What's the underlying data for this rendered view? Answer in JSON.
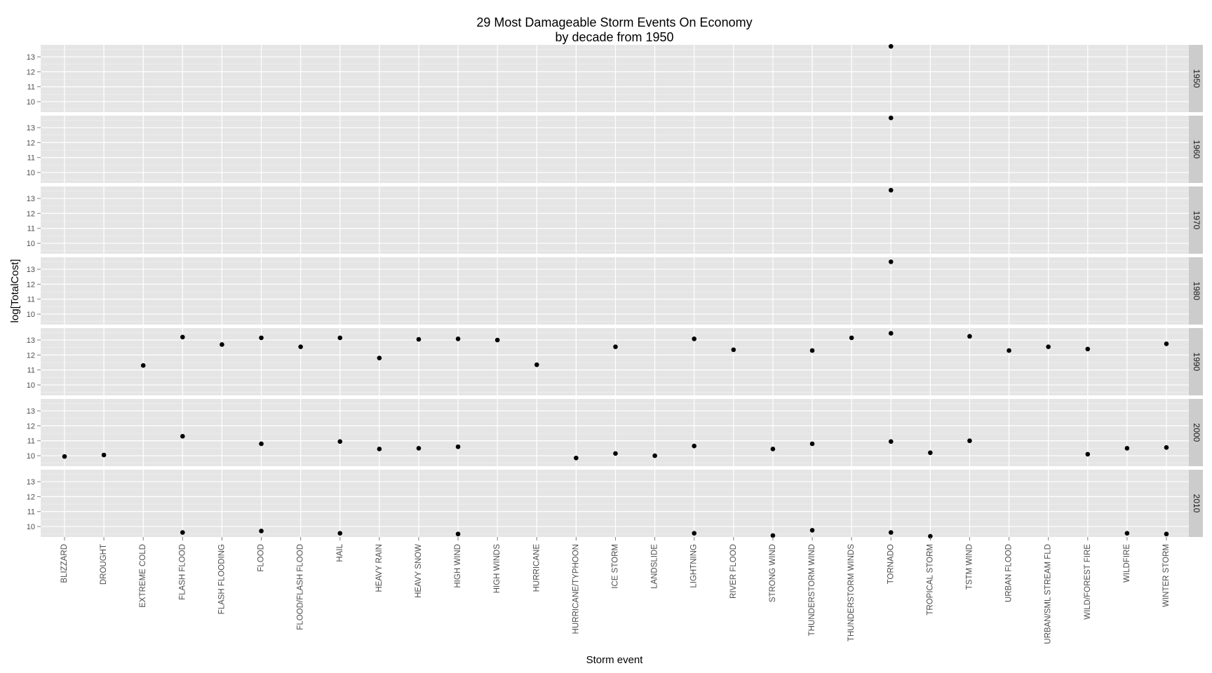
{
  "chart_data": {
    "type": "scatter",
    "title": "29 Most Damageable Storm Events On Economy",
    "subtitle": "by decade from 1950",
    "xlabel": "Storm event",
    "ylabel": "log[TotalCost]",
    "ylim": [
      9.3,
      13.8
    ],
    "yticks": [
      10,
      11,
      12,
      13
    ],
    "grid": true,
    "legend": "none",
    "colors": {
      "panel_bg": "#e5e5e5",
      "grid_major": "#ffffff",
      "grid_minor": "#f2f2f2",
      "strip_bg": "#cccccc",
      "point": "#000000"
    },
    "categories": [
      "BLIZZARD",
      "DROUGHT",
      "EXTREME COLD",
      "FLASH FLOOD",
      "FLASH FLOODING",
      "FLOOD",
      "FLOOD/FLASH FLOOD",
      "HAIL",
      "HEAVY RAIN",
      "HEAVY SNOW",
      "HIGH WIND",
      "HIGH WINDS",
      "HURRICANE",
      "HURRICANE/TYPHOON",
      "ICE STORM",
      "LANDSLIDE",
      "LIGHTNING",
      "RIVER FLOOD",
      "STRONG WIND",
      "THUNDERSTORM WIND",
      "THUNDERSTORM WINDS",
      "TORNADO",
      "TROPICAL STORM",
      "TSTM WIND",
      "URBAN FLOOD",
      "URBAN/SML STREAM FLD",
      "WILD/FOREST FIRE",
      "WILDFIRE",
      "WINTER STORM"
    ],
    "facets": [
      {
        "decade": "1950",
        "points": [
          {
            "x": "TORNADO",
            "y": 13.7
          }
        ]
      },
      {
        "decade": "1960",
        "points": [
          {
            "x": "TORNADO",
            "y": 13.65
          }
        ]
      },
      {
        "decade": "1970",
        "points": [
          {
            "x": "TORNADO",
            "y": 13.55
          }
        ]
      },
      {
        "decade": "1980",
        "points": [
          {
            "x": "TORNADO",
            "y": 13.5
          }
        ]
      },
      {
        "decade": "1990",
        "points": [
          {
            "x": "EXTREME COLD",
            "y": 11.3
          },
          {
            "x": "FLASH FLOOD",
            "y": 13.2
          },
          {
            "x": "FLASH FLOODING",
            "y": 12.7
          },
          {
            "x": "FLOOD",
            "y": 13.15
          },
          {
            "x": "FLOOD/FLASH FLOOD",
            "y": 12.55
          },
          {
            "x": "HAIL",
            "y": 13.15
          },
          {
            "x": "HEAVY RAIN",
            "y": 11.8
          },
          {
            "x": "HEAVY SNOW",
            "y": 13.05
          },
          {
            "x": "HIGH WIND",
            "y": 13.08
          },
          {
            "x": "HIGH WINDS",
            "y": 13.0
          },
          {
            "x": "HURRICANE",
            "y": 11.35
          },
          {
            "x": "ICE STORM",
            "y": 12.55
          },
          {
            "x": "LIGHTNING",
            "y": 13.08
          },
          {
            "x": "RIVER FLOOD",
            "y": 12.35
          },
          {
            "x": "THUNDERSTORM WIND",
            "y": 12.3
          },
          {
            "x": "THUNDERSTORM WINDS",
            "y": 13.15
          },
          {
            "x": "TORNADO",
            "y": 13.45
          },
          {
            "x": "TSTM WIND",
            "y": 13.25
          },
          {
            "x": "URBAN FLOOD",
            "y": 12.3
          },
          {
            "x": "URBAN/SML STREAM FLD",
            "y": 12.55
          },
          {
            "x": "WILD/FOREST FIRE",
            "y": 12.4
          },
          {
            "x": "WINTER STORM",
            "y": 12.75
          }
        ]
      },
      {
        "decade": "2000",
        "points": [
          {
            "x": "BLIZZARD",
            "y": 9.95
          },
          {
            "x": "DROUGHT",
            "y": 10.05
          },
          {
            "x": "FLASH FLOOD",
            "y": 11.3
          },
          {
            "x": "FLOOD",
            "y": 10.8
          },
          {
            "x": "HAIL",
            "y": 10.95
          },
          {
            "x": "HEAVY RAIN",
            "y": 10.45
          },
          {
            "x": "HEAVY SNOW",
            "y": 10.5
          },
          {
            "x": "HIGH WIND",
            "y": 10.6
          },
          {
            "x": "HURRICANE/TYPHOON",
            "y": 9.85
          },
          {
            "x": "ICE STORM",
            "y": 10.15
          },
          {
            "x": "LANDSLIDE",
            "y": 10.0
          },
          {
            "x": "LIGHTNING",
            "y": 10.65
          },
          {
            "x": "STRONG WIND",
            "y": 10.45
          },
          {
            "x": "THUNDERSTORM WIND",
            "y": 10.8
          },
          {
            "x": "TORNADO",
            "y": 10.95
          },
          {
            "x": "TROPICAL STORM",
            "y": 10.2
          },
          {
            "x": "TSTM WIND",
            "y": 11.0
          },
          {
            "x": "WILD/FOREST FIRE",
            "y": 10.1
          },
          {
            "x": "WILDFIRE",
            "y": 10.5
          },
          {
            "x": "WINTER STORM",
            "y": 10.55
          }
        ]
      },
      {
        "decade": "2010",
        "points": [
          {
            "x": "FLASH FLOOD",
            "y": 9.6
          },
          {
            "x": "FLOOD",
            "y": 9.7
          },
          {
            "x": "HAIL",
            "y": 9.55
          },
          {
            "x": "HIGH WIND",
            "y": 9.5
          },
          {
            "x": "LIGHTNING",
            "y": 9.55
          },
          {
            "x": "STRONG WIND",
            "y": 9.4
          },
          {
            "x": "THUNDERSTORM WIND",
            "y": 9.75
          },
          {
            "x": "TORNADO",
            "y": 9.6
          },
          {
            "x": "TROPICAL STORM",
            "y": 9.35
          },
          {
            "x": "WILDFIRE",
            "y": 9.55
          },
          {
            "x": "WINTER STORM",
            "y": 9.5
          }
        ]
      }
    ]
  }
}
